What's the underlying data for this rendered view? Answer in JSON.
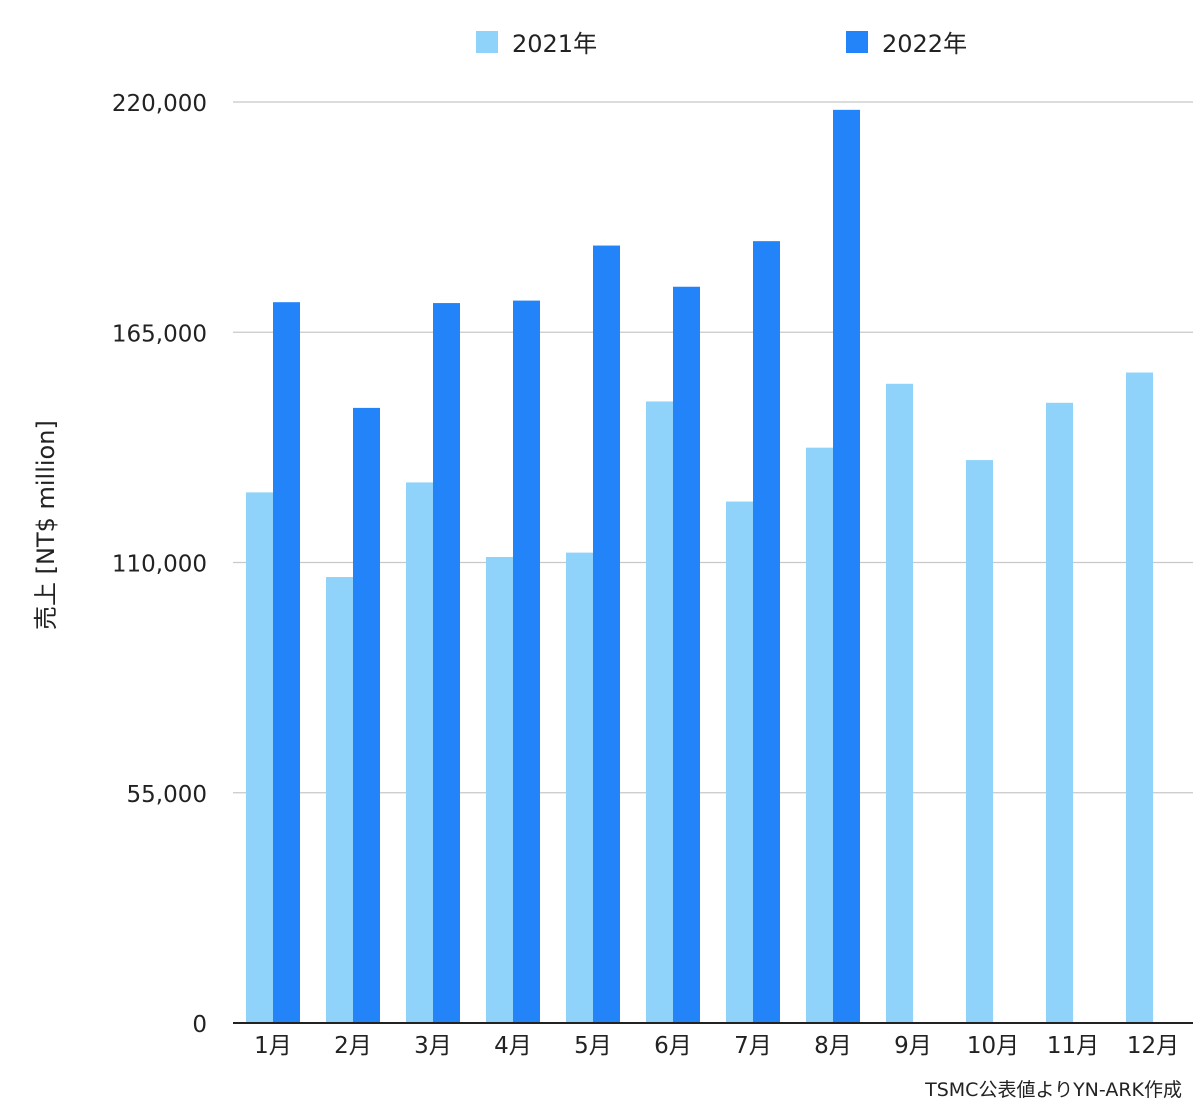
{
  "chart_data": {
    "type": "bar",
    "categories": [
      "1月",
      "2月",
      "3月",
      "4月",
      "5月",
      "6月",
      "7月",
      "8月",
      "9月",
      "10月",
      "11月",
      "12月"
    ],
    "series": [
      {
        "name": "2021年",
        "color": "#8fd3fa",
        "values": [
          126750,
          106530,
          129130,
          111320,
          112360,
          148470,
          124560,
          137430,
          152690,
          134470,
          148150,
          155380
        ]
      },
      {
        "name": "2022年",
        "color": "#2383f8",
        "values": [
          172180,
          146930,
          171970,
          172560,
          185710,
          175870,
          186760,
          218130,
          null,
          null,
          null,
          null
        ]
      }
    ],
    "ylabel": "売上 [NT$ million]",
    "xlabel": "",
    "ylim": [
      0,
      220000
    ],
    "yticks": [
      "0",
      "55,000",
      "110,000",
      "165,000",
      "220,000"
    ],
    "ytick_values": [
      0,
      55000,
      110000,
      165000,
      220000
    ],
    "grid": true,
    "legend_position": "top-center",
    "source_note": "TSMC公表値よりYN-ARK作成"
  }
}
